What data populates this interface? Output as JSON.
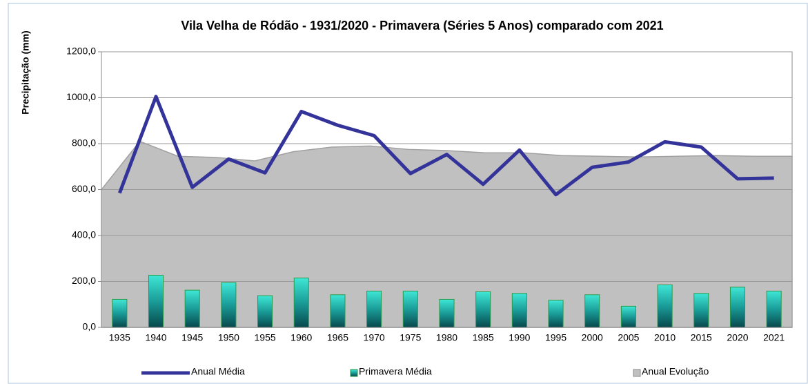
{
  "chart_data": {
    "type": "combo",
    "title": "Vila Velha de Ródão - 1931/2020 - Primavera (Séries 5 Anos) comparado com 2021",
    "y_label": "Precipitação (mm)",
    "categories": [
      "1935",
      "1940",
      "1945",
      "1950",
      "1955",
      "1960",
      "1965",
      "1970",
      "1975",
      "1980",
      "1985",
      "1990",
      "1995",
      "2000",
      "2005",
      "2010",
      "2015",
      "2020",
      "2021"
    ],
    "series": [
      {
        "name": "Anual Média",
        "type": "line",
        "color": "#33339a",
        "values": [
          585,
          1005,
          610,
          733,
          673,
          940,
          880,
          835,
          670,
          753,
          623,
          772,
          578,
          697,
          720,
          808,
          785,
          647,
          650
        ]
      },
      {
        "name": "Primavera Média",
        "type": "bar",
        "color": "#2ec4b6",
        "values": [
          122,
          227,
          162,
          195,
          138,
          215,
          142,
          158,
          158,
          122,
          155,
          148,
          118,
          142,
          92,
          185,
          148,
          175,
          158
        ]
      },
      {
        "name": "Anual Evolução",
        "type": "area",
        "color": "#c0c0c0",
        "values": [
          600,
          810,
          745,
          740,
          725,
          765,
          785,
          790,
          775,
          770,
          760,
          760,
          748,
          745,
          742,
          745,
          748,
          745,
          745
        ]
      }
    ],
    "ylim": [
      0,
      1200
    ],
    "yticks": [
      {
        "value": 0,
        "label": "0,0"
      },
      {
        "value": 200,
        "label": "200,0"
      },
      {
        "value": 400,
        "label": "400,0"
      },
      {
        "value": 600,
        "label": "600,0"
      },
      {
        "value": 800,
        "label": "800,0"
      },
      {
        "value": 1000,
        "label": "1000,0"
      },
      {
        "value": 1200,
        "label": "1200,0"
      }
    ],
    "grid": true,
    "legend": "bottom"
  }
}
